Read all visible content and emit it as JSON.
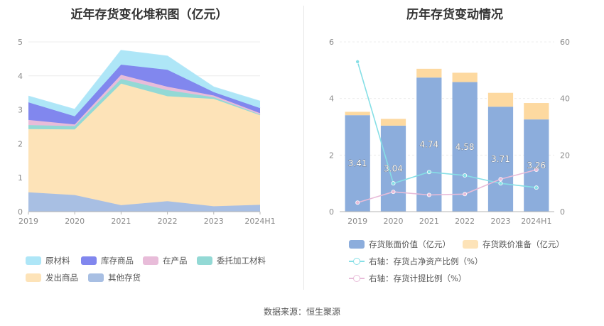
{
  "source_text": "数据来源：恒生聚源",
  "colors": {
    "raw": "#aee6f7",
    "stock": "#8187ee",
    "wip": "#e8bcd9",
    "entrusted": "#93d9d5",
    "shipped": "#fde3b8",
    "other": "#a8bfe3",
    "bar_book": "#8caddc",
    "bar_prov": "#fdd9a0",
    "line_ratio": "#86dfe6",
    "line_prov": "#e8bcd9"
  },
  "chart_data": [
    {
      "type": "area",
      "title": "近年存货变化堆积图（亿元）",
      "categories": [
        "2019",
        "2020",
        "2021",
        "2022",
        "2023",
        "2024H1"
      ],
      "ylim": [
        0,
        5
      ],
      "yticks": [
        "0",
        "1",
        "2",
        "3",
        "4",
        "5"
      ],
      "series": [
        {
          "name": "其他存货",
          "values": [
            0.57,
            0.49,
            0.19,
            0.31,
            0.16,
            0.2
          ]
        },
        {
          "name": "发出商品",
          "values": [
            1.86,
            1.93,
            3.58,
            3.09,
            3.16,
            2.64
          ]
        },
        {
          "name": "委托加工材料",
          "values": [
            0.12,
            0.1,
            0.14,
            0.18,
            0.05,
            0.02
          ]
        },
        {
          "name": "在产品",
          "values": [
            0.15,
            0.05,
            0.12,
            0.1,
            0.05,
            0.04
          ]
        },
        {
          "name": "库存商品",
          "values": [
            0.52,
            0.24,
            0.3,
            0.5,
            0.1,
            0.15
          ]
        },
        {
          "name": "原材料",
          "values": [
            0.18,
            0.2,
            0.42,
            0.4,
            0.15,
            0.2
          ]
        }
      ],
      "legend": [
        "原材料",
        "库存商品",
        "在产品",
        "委托加工材料",
        "发出商品",
        "其他存货"
      ]
    },
    {
      "type": "bar",
      "title": "历年存货变动情况",
      "categories": [
        "2019",
        "2020",
        "2021",
        "2022",
        "2023",
        "2024H1"
      ],
      "ylim_left": [
        0,
        6
      ],
      "yticks_left": [
        "0",
        "2",
        "4",
        "6"
      ],
      "ylim_right": [
        0,
        60
      ],
      "yticks_right": [
        "0",
        "20",
        "40",
        "60"
      ],
      "series": [
        {
          "name": "存货账面价值（亿元）",
          "axis": "left",
          "values": [
            3.41,
            3.04,
            4.74,
            4.58,
            3.71,
            3.26
          ],
          "labels": [
            "3.41",
            "3.04",
            "4.74",
            "4.58",
            "3.71",
            "3.26"
          ]
        },
        {
          "name": "存货跌价准备（亿元）",
          "axis": "left",
          "values": [
            0.12,
            0.24,
            0.31,
            0.33,
            0.49,
            0.58
          ]
        },
        {
          "name": "右轴：存货占净资产比例（%）",
          "axis": "right",
          "type": "line",
          "values": [
            53.0,
            10.0,
            14.0,
            12.8,
            10.0,
            8.5
          ]
        },
        {
          "name": "右轴：存货计提比例（%）",
          "axis": "right",
          "type": "line",
          "values": [
            3.2,
            7.0,
            5.9,
            6.2,
            11.5,
            14.8
          ]
        }
      ],
      "legend": [
        "存货账面价值（亿元）",
        "存货跌价准备（亿元）",
        "右轴：存货占净资产比例（%）",
        "右轴：存货计提比例（%）"
      ]
    }
  ]
}
